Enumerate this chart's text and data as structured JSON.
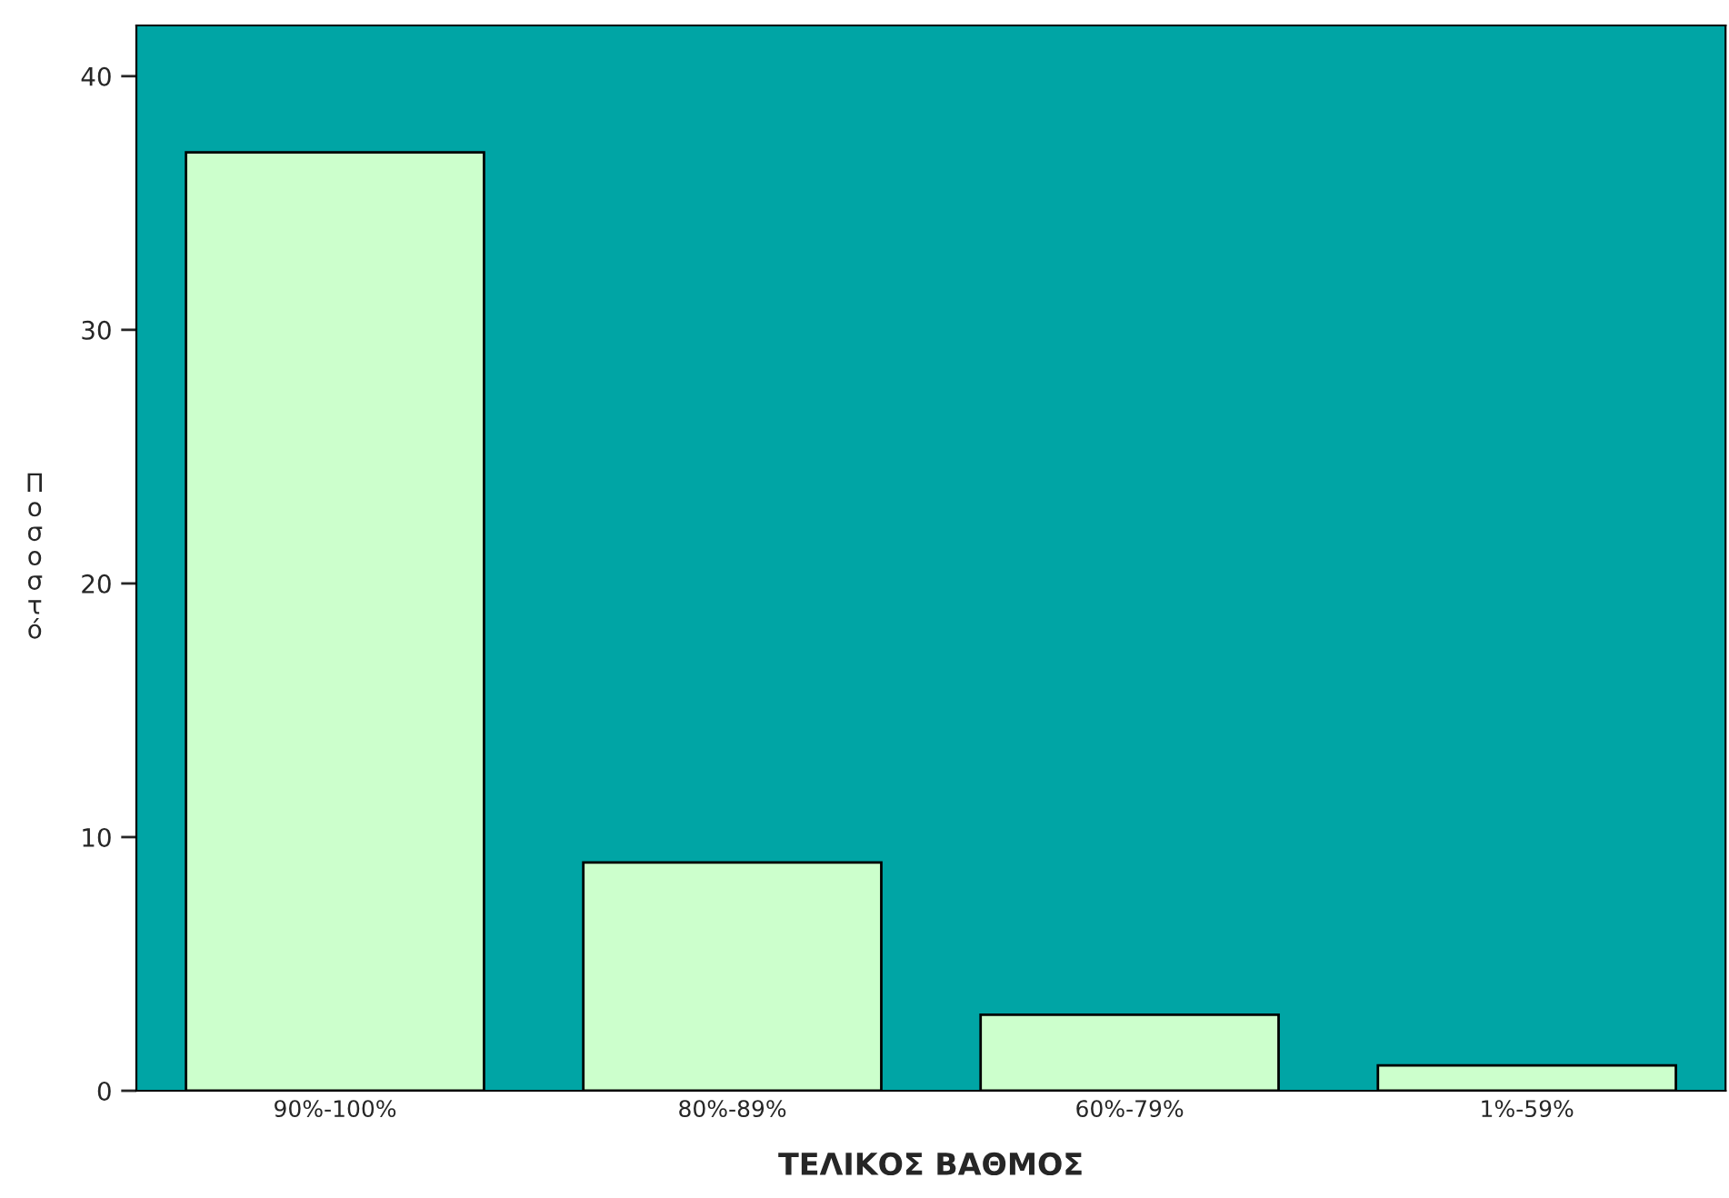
{
  "chart_data": {
    "type": "bar",
    "xlabel": "ΤΕΛΙΚΟΣ ΒΑΘΜΟΣ",
    "ylabel": "Ποσοστό",
    "categories": [
      "90%-100%",
      "80%-89%",
      "60%-79%",
      "1%-59%"
    ],
    "values": [
      37,
      9,
      3,
      1
    ],
    "color": "#ccffcc",
    "ylim": [
      0,
      42
    ],
    "yticks": [
      0,
      10,
      20,
      30,
      40
    ],
    "grid": false,
    "legend": false
  }
}
